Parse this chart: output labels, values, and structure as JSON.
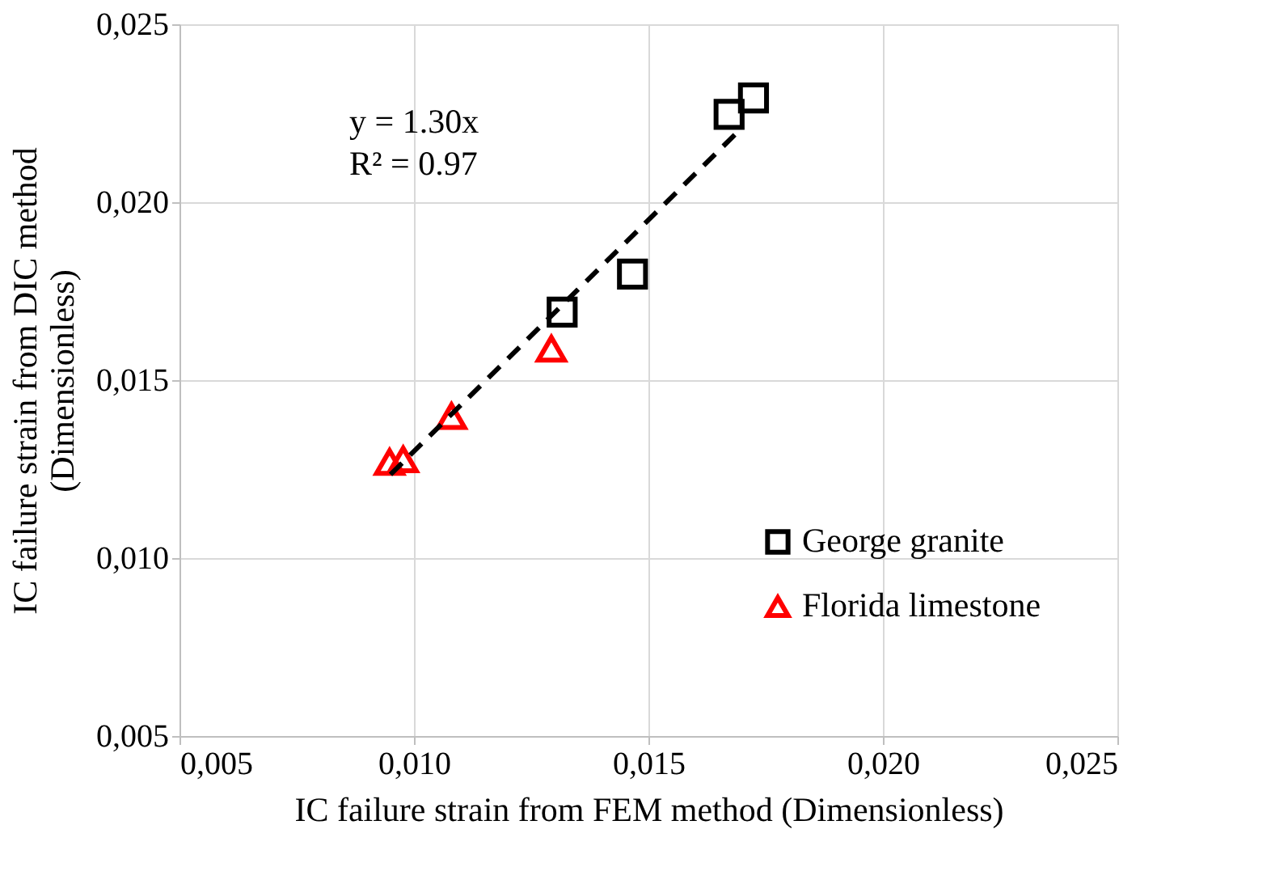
{
  "chart_data": {
    "type": "scatter",
    "xlabel": "IC failure strain from FEM method (Dimensionless)",
    "ylabel": "IC failure strain from DIC method\n(Dimensionless)",
    "xlim": [
      0.005,
      0.025
    ],
    "ylim": [
      0.005,
      0.025
    ],
    "xticks": [
      {
        "value": 0.005,
        "label": "0,005"
      },
      {
        "value": 0.01,
        "label": "0,010"
      },
      {
        "value": 0.015,
        "label": "0,015"
      },
      {
        "value": 0.02,
        "label": "0,020"
      },
      {
        "value": 0.025,
        "label": "0,025"
      }
    ],
    "yticks": [
      {
        "value": 0.005,
        "label": "0,005"
      },
      {
        "value": 0.01,
        "label": "0,010"
      },
      {
        "value": 0.015,
        "label": "0,015"
      },
      {
        "value": 0.02,
        "label": "0,020"
      },
      {
        "value": 0.025,
        "label": "0,025"
      }
    ],
    "grid": true,
    "legend": "bottom right",
    "series": [
      {
        "name": "George granite",
        "color": "#000000",
        "marker": "square",
        "x": [
          0.01316,
          0.01466,
          0.01672,
          0.01724
        ],
        "values": [
          0.01691,
          0.01798,
          0.02247,
          0.02293
        ]
      },
      {
        "name": "Florida limestone",
        "color": "#ff0000",
        "marker": "triangle",
        "x": [
          0.00948,
          0.00977,
          0.0108,
          0.01293
        ],
        "values": [
          0.0127,
          0.01277,
          0.01399,
          0.01588
        ]
      },
      {
        "type": "line",
        "color": "#000000",
        "line_style": "dashed",
        "x": [
          0.0095,
          0.017
        ],
        "values": [
          0.01235,
          0.0221
        ]
      }
    ],
    "annotations": [
      "y = 1.30x\nR² = 0.97"
    ]
  }
}
